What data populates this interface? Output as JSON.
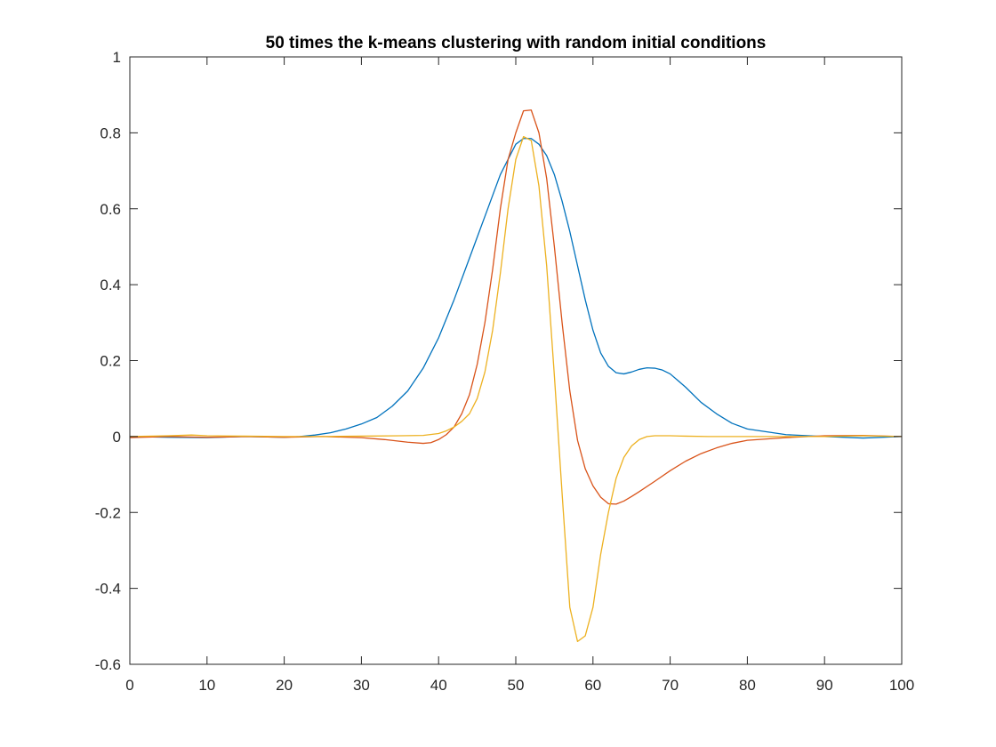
{
  "chart_data": {
    "type": "line",
    "title": "50 times the k-means clustering with random initial conditions",
    "xlabel": "",
    "ylabel": "",
    "xlim": [
      0,
      100
    ],
    "ylim": [
      -0.6,
      1
    ],
    "xticks": [
      0,
      10,
      20,
      30,
      40,
      50,
      60,
      70,
      80,
      90,
      100
    ],
    "xtick_labels": [
      "0",
      "10",
      "20",
      "30",
      "40",
      "50",
      "60",
      "70",
      "80",
      "90",
      "100"
    ],
    "yticks": [
      -0.6,
      -0.4,
      -0.2,
      0,
      0.2,
      0.4,
      0.6,
      0.8,
      1
    ],
    "ytick_labels": [
      "-0.6",
      "-0.4",
      "-0.2",
      "0",
      "0.2",
      "0.4",
      "0.6",
      "0.8",
      "1"
    ],
    "grid": false,
    "box": true,
    "series": [
      {
        "color": "#0072BD",
        "x": [
          0,
          5,
          10,
          15,
          20,
          22,
          24,
          26,
          28,
          30,
          32,
          34,
          36,
          38,
          40,
          42,
          44,
          46,
          48,
          50,
          51,
          52,
          53,
          54,
          55,
          56,
          57,
          58,
          59,
          60,
          61,
          62,
          63,
          64,
          65,
          66,
          67,
          68,
          69,
          70,
          72,
          74,
          76,
          78,
          80,
          85,
          90,
          95,
          100
        ],
        "y": [
          0,
          -0.002,
          -0.003,
          0,
          -0.002,
          0,
          0.004,
          0.01,
          0.02,
          0.033,
          0.05,
          0.08,
          0.12,
          0.18,
          0.26,
          0.36,
          0.47,
          0.58,
          0.69,
          0.77,
          0.785,
          0.785,
          0.77,
          0.74,
          0.69,
          0.62,
          0.54,
          0.45,
          0.36,
          0.28,
          0.22,
          0.185,
          0.168,
          0.165,
          0.17,
          0.177,
          0.181,
          0.18,
          0.175,
          0.165,
          0.13,
          0.09,
          0.06,
          0.035,
          0.02,
          0.005,
          0,
          -0.004,
          0
        ]
      },
      {
        "color": "#D95319",
        "x": [
          0,
          5,
          10,
          15,
          20,
          25,
          30,
          33,
          36,
          38,
          39,
          40,
          41,
          42,
          43,
          44,
          45,
          46,
          47,
          48,
          49,
          50,
          51,
          52,
          53,
          54,
          55,
          56,
          57,
          58,
          59,
          60,
          61,
          62,
          63,
          64,
          65,
          66,
          68,
          70,
          72,
          74,
          76,
          78,
          80,
          85,
          90,
          95,
          100
        ],
        "y": [
          -0.003,
          0,
          -0.002,
          0,
          -0.002,
          0,
          -0.003,
          -0.008,
          -0.015,
          -0.018,
          -0.016,
          -0.008,
          0.005,
          0.025,
          0.06,
          0.11,
          0.19,
          0.3,
          0.44,
          0.6,
          0.73,
          0.8,
          0.858,
          0.86,
          0.8,
          0.68,
          0.5,
          0.3,
          0.12,
          -0.01,
          -0.085,
          -0.13,
          -0.16,
          -0.177,
          -0.178,
          -0.17,
          -0.158,
          -0.145,
          -0.118,
          -0.09,
          -0.065,
          -0.045,
          -0.03,
          -0.018,
          -0.01,
          -0.003,
          0.002,
          0.003,
          0
        ]
      },
      {
        "color": "#EDB120",
        "x": [
          0,
          5,
          8,
          10,
          15,
          20,
          25,
          30,
          35,
          38,
          40,
          41,
          42,
          43,
          44,
          45,
          46,
          47,
          48,
          49,
          50,
          51,
          52,
          53,
          54,
          55,
          56,
          57,
          58,
          59,
          60,
          61,
          62,
          63,
          64,
          65,
          66,
          67,
          68,
          70,
          72,
          75,
          80,
          85,
          90,
          95,
          100
        ],
        "y": [
          0,
          0.002,
          0.004,
          0.002,
          0.001,
          0,
          0,
          0.001,
          0.002,
          0.003,
          0.008,
          0.015,
          0.025,
          0.04,
          0.06,
          0.1,
          0.17,
          0.28,
          0.43,
          0.6,
          0.73,
          0.79,
          0.78,
          0.66,
          0.45,
          0.16,
          -0.15,
          -0.45,
          -0.54,
          -0.525,
          -0.45,
          -0.31,
          -0.2,
          -0.11,
          -0.055,
          -0.025,
          -0.008,
          0,
          0.002,
          0.002,
          0.001,
          0,
          0,
          0,
          0,
          0.002,
          0
        ]
      }
    ]
  }
}
